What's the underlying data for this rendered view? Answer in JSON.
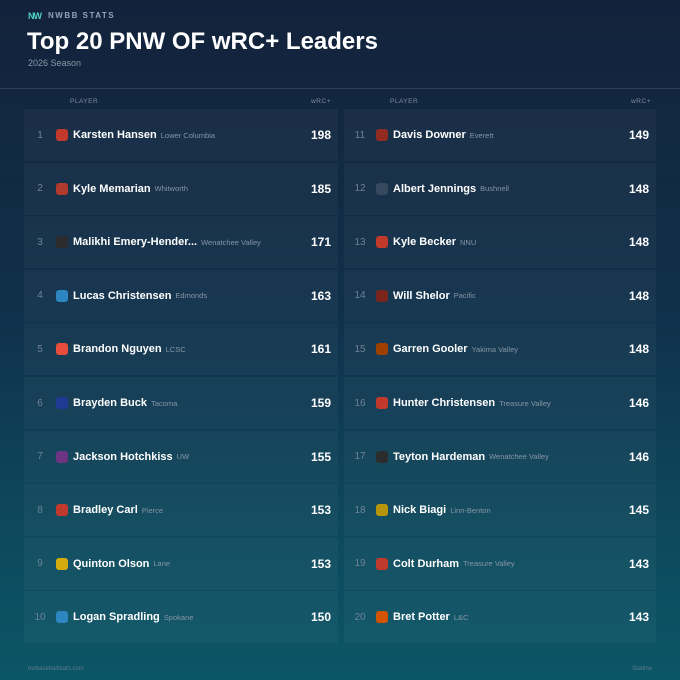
{
  "header": {
    "logo": "NW",
    "brand": "NWBB STATS",
    "title": "Top 20 PNW OF wRC+ Leaders",
    "subtitle": "2026 Season"
  },
  "table": {
    "headers": [
      "PLAYER",
      "wRC+"
    ],
    "rows": [
      {
        "rank": 1,
        "name": "Karsten Hansen",
        "team": "Lower Columbia",
        "value": 198
      },
      {
        "rank": 2,
        "name": "Kyle Memarian",
        "team": "Whitworth",
        "value": 185
      },
      {
        "rank": 3,
        "name": "Malikhi Emery-Hender...",
        "team": "Wenatchee Valley",
        "value": 171
      },
      {
        "rank": 4,
        "name": "Lucas Christensen",
        "team": "Edmonds",
        "value": 163
      },
      {
        "rank": 5,
        "name": "Brandon Nguyen",
        "team": "LCSC",
        "value": 161
      },
      {
        "rank": 6,
        "name": "Brayden Buck",
        "team": "Tacoma",
        "value": 159
      },
      {
        "rank": 7,
        "name": "Jackson Hotchkiss",
        "team": "UW",
        "value": 155
      },
      {
        "rank": 8,
        "name": "Bradley Carl",
        "team": "Pierce",
        "value": 153
      },
      {
        "rank": 9,
        "name": "Quinton Olson",
        "team": "Lane",
        "value": 153
      },
      {
        "rank": 10,
        "name": "Logan Spradling",
        "team": "Spokane",
        "value": 150
      },
      {
        "rank": 11,
        "name": "Davis Downer",
        "team": "Everett",
        "value": 149
      },
      {
        "rank": 12,
        "name": "Albert Jennings",
        "team": "Bushnell",
        "value": 148
      },
      {
        "rank": 13,
        "name": "Kyle Becker",
        "team": "NNU",
        "value": 148
      },
      {
        "rank": 14,
        "name": "Will Shelor",
        "team": "Pacific",
        "value": 148
      },
      {
        "rank": 15,
        "name": "Garren Gooler",
        "team": "Yakima Valley",
        "value": 148
      },
      {
        "rank": 16,
        "name": "Hunter Christensen",
        "team": "Treasure Valley",
        "value": 146
      },
      {
        "rank": 17,
        "name": "Teyton Hardeman",
        "team": "Wenatchee Valley",
        "value": 146
      },
      {
        "rank": 18,
        "name": "Nick Biagi",
        "team": "Linn-Benton",
        "value": 145
      },
      {
        "rank": 19,
        "name": "Colt Durham",
        "team": "Treasure Valley",
        "value": 143
      },
      {
        "rank": 20,
        "name": "Bret Potter",
        "team": "L&C",
        "value": 143
      }
    ]
  },
  "footer": {
    "site": "nwbaseballstats.com",
    "source": "Statline"
  }
}
